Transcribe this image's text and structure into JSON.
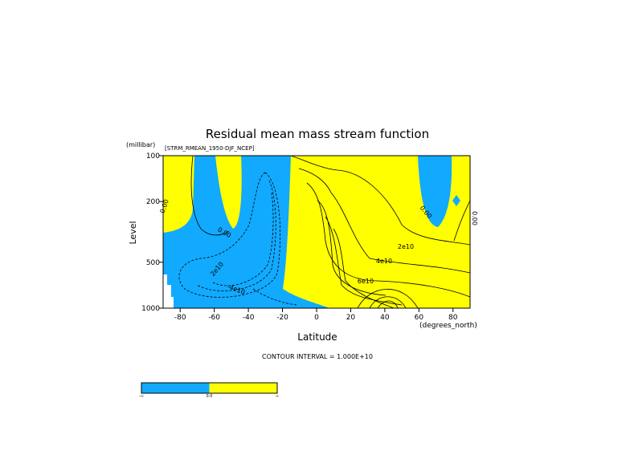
{
  "chart_data": {
    "type": "contour",
    "title": "Residual mean mass stream function",
    "subtitle": "[STRM_RMEAN_1950-DJF_NCEP]",
    "y_units": "(millibar)",
    "y_label": "Level",
    "x_label": "Latitude",
    "x_units": "(degrees_north)",
    "note": "CONTOUR INTERVAL = 1.000E+10",
    "xlim": [
      -90,
      90
    ],
    "xticks": [
      -80,
      -60,
      -40,
      -20,
      0,
      20,
      40,
      60,
      80
    ],
    "ylim": [
      1000,
      100
    ],
    "yticks": [
      100,
      200,
      500,
      1000
    ],
    "ylog": true,
    "colors": [
      "#11aaff",
      "#ffff00"
    ],
    "colorbar_labels": [
      "-∞",
      "0.0",
      "∞"
    ],
    "contour_labels": [
      "0.00",
      "0.00",
      "2e10",
      "-4e10",
      "2e10",
      "4e10",
      "6e10",
      "0.00",
      "0.00"
    ]
  }
}
